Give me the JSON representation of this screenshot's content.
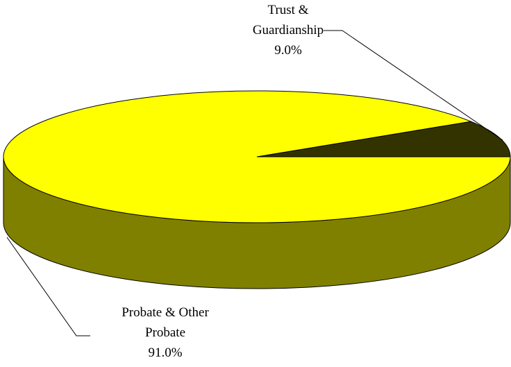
{
  "chart_data": {
    "type": "pie3d",
    "categories": [
      "Trust & Guardianship",
      "Probate & Other Probate"
    ],
    "values": [
      9,
      91
    ],
    "value_labels": [
      "9.0%",
      "91.0%"
    ],
    "colors": [
      "#333300",
      "#ffff00"
    ],
    "side_colors": [
      "#1a1a00",
      "#808000"
    ]
  }
}
